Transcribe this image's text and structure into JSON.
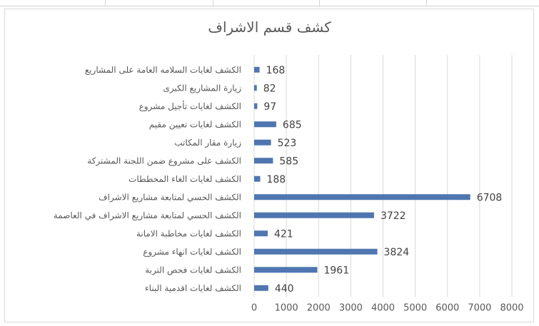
{
  "chart_data": {
    "type": "bar",
    "orientation": "horizontal",
    "title": "كشف قسم الاشراف",
    "xlabel": "",
    "ylabel": "",
    "categories": [
      "الكشف لغايات السلامه العامة على المشاريع",
      "زيارة المشاريع الكبرى",
      "الكشف لغايات تأجيل مشروع",
      "الكشف لغايات تعيين مقيم",
      "زيارة مقار المكاتب",
      "الكشف على مشروع ضمن اللجنة المشتركة",
      "الكشف لغايات الغاء المخططات",
      "الكشف الحسي لمتابعة مشاريع الاشراف",
      "الكشف الحسي لمتابعة مشاريع الاشراف في العاصمة",
      "الكشف لغايات مخاطبة الامانة",
      "الكشف لغايات انهاء مشروع",
      "الكشف لغايات فحص التربة",
      "الكشف لغايات اقدمية البناء"
    ],
    "values": [
      168,
      82,
      97,
      685,
      523,
      585,
      188,
      6708,
      3722,
      421,
      3824,
      1961,
      440
    ],
    "xlim": [
      0,
      8000
    ],
    "xticks": [
      "0",
      "1000",
      "2000",
      "3000",
      "4000",
      "5000",
      "6000",
      "7000",
      "8000"
    ],
    "grid": "vertical",
    "legend": "none",
    "bar_color": "#4f76b0",
    "grid_color": "#d9d9d9"
  }
}
